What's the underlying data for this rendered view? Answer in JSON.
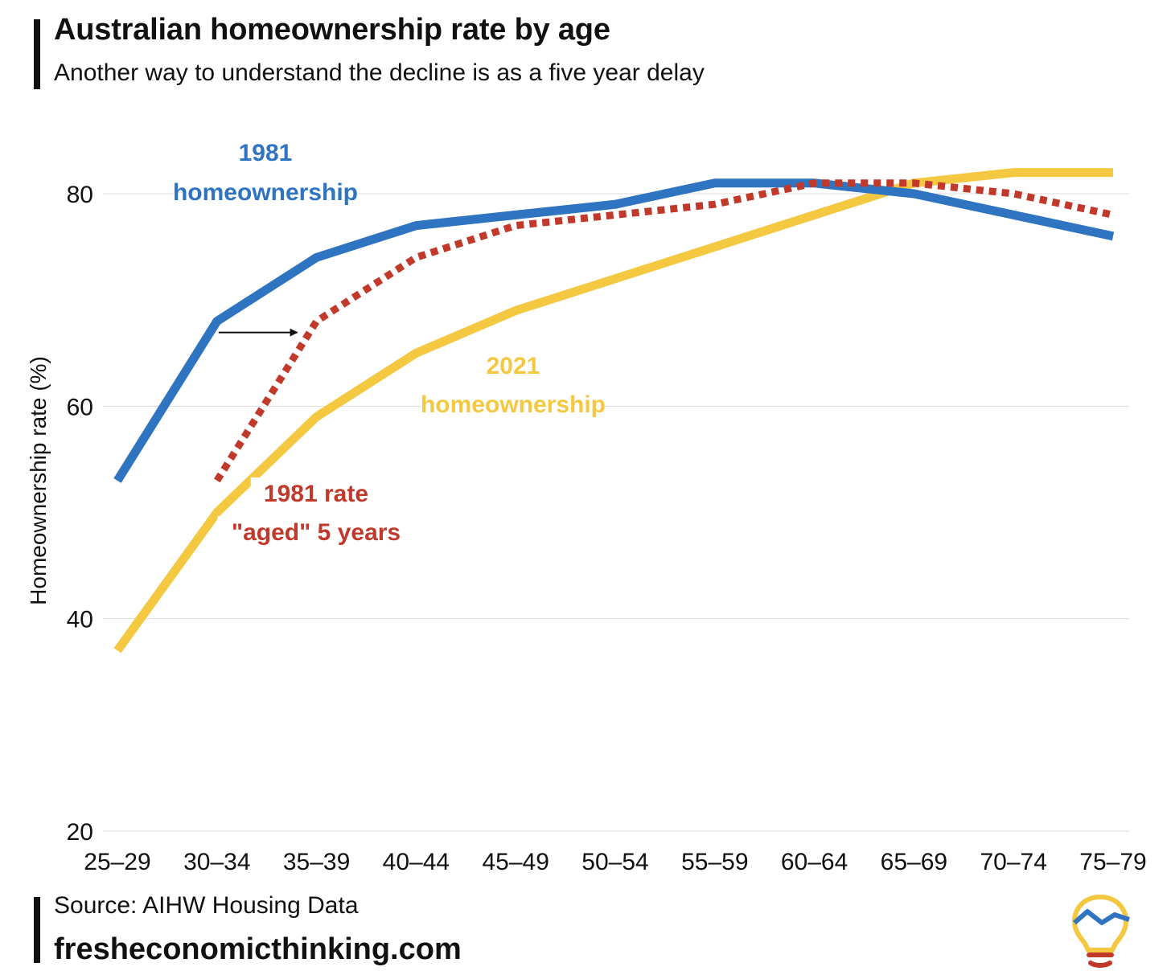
{
  "header": {
    "title": "Australian homeownership rate by age",
    "subtitle": "Another way to understand the decline is as a five year delay"
  },
  "footer": {
    "source": "Source: AIHW Housing Data",
    "site": "fresheconomicthinking.com"
  },
  "colors": {
    "blue": "#2f74c0",
    "yellow": "#f5c842",
    "red": "#c0392b",
    "grid": "#dddddd",
    "text": "#111111"
  },
  "logo": {
    "icon": "lightbulb-chart-icon"
  },
  "chart_data": {
    "type": "line",
    "title": "Australian homeownership rate by age",
    "subtitle": "Another way to understand the decline is as a five year delay",
    "xlabel": "",
    "ylabel": "Homeownership rate (%)",
    "ylim": [
      20,
      85
    ],
    "yticks": [
      20,
      40,
      60,
      80
    ],
    "grid": true,
    "categories": [
      "25–29",
      "30–34",
      "35–39",
      "40–44",
      "45–49",
      "50–54",
      "55–59",
      "60–64",
      "65–69",
      "70–74",
      "75–79"
    ],
    "series": [
      {
        "name": "1981 homeownership",
        "label_lines": [
          "1981",
          "homeownership"
        ],
        "color": "#2f74c0",
        "style": "solid",
        "values": [
          53,
          68,
          74,
          77,
          78,
          79,
          81,
          81,
          80,
          78,
          76
        ]
      },
      {
        "name": "2021 homeownership",
        "label_lines": [
          "2021",
          "homeownership"
        ],
        "color": "#f5c842",
        "style": "solid",
        "values": [
          37,
          50,
          59,
          65,
          69,
          72,
          75,
          78,
          81,
          82,
          82
        ]
      },
      {
        "name": "1981 rate \"aged\" 5 years",
        "label_lines": [
          "1981 rate",
          "\"aged\" 5 years"
        ],
        "color": "#c0392b",
        "style": "dotted",
        "values": [
          null,
          53,
          68,
          74,
          77,
          78,
          79,
          81,
          81,
          80,
          78
        ]
      }
    ],
    "annotations": [
      {
        "type": "arrow",
        "from": {
          "category": "30–34",
          "value": 68
        },
        "to": {
          "category": "35–39",
          "value": 68
        },
        "note": "five year shift"
      }
    ]
  }
}
